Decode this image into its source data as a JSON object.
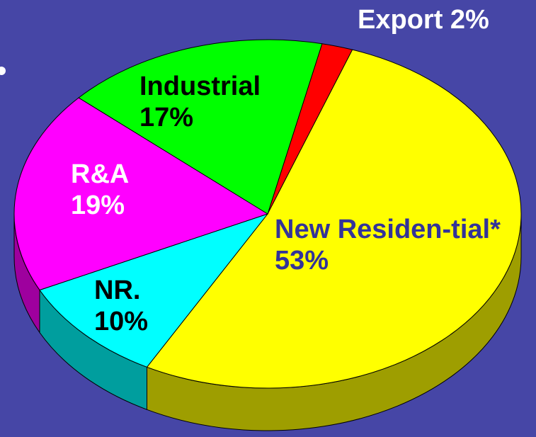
{
  "chart_data": {
    "type": "pie",
    "categories": [
      "Export",
      "New Residen-tial*",
      "NR.",
      "R&A",
      "Industrial"
    ],
    "values": [
      2,
      53,
      10,
      19,
      17
    ],
    "value_labels": [
      "2%",
      "53%",
      "10%",
      "19%",
      "17%"
    ],
    "colors": [
      "#ff0000",
      "#ffff00",
      "#00ffff",
      "#ff00ff",
      "#00ff00"
    ],
    "label_colors": [
      "#ffffff",
      "#333399",
      "#000000",
      "#ffffff",
      "#000000"
    ],
    "background": "#4646a6"
  }
}
